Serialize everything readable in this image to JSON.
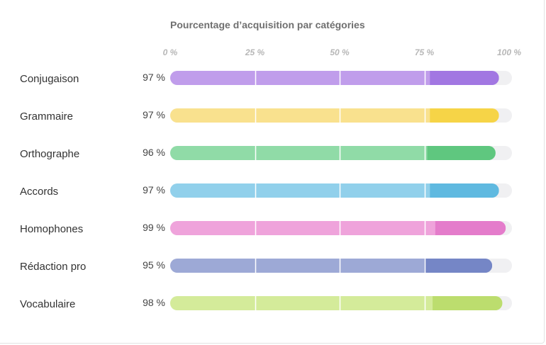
{
  "chart_data": {
    "type": "bar",
    "orientation": "horizontal",
    "title": "Pourcentage d’acquisition par catégories",
    "xlabel": "",
    "ylabel": "",
    "xlim": [
      0,
      100
    ],
    "ticks": [
      "0 %",
      "25 %",
      "50 %",
      "75 %",
      "100 %"
    ],
    "tick_values": [
      0,
      25,
      50,
      75,
      100
    ],
    "grid": true,
    "categories": [
      "Conjugaison",
      "Grammaire",
      "Orthographe",
      "Accords",
      "Homophones",
      "Rédaction pro",
      "Vocabulaire"
    ],
    "values": [
      97,
      97,
      96,
      97,
      99,
      95,
      98
    ],
    "value_labels": [
      "97 %",
      "97 %",
      "96 %",
      "97 %",
      "99 %",
      "95 %",
      "98 %"
    ],
    "colors": [
      {
        "light": "#c09deb",
        "dark": "#a277e2"
      },
      {
        "light": "#f9e18e",
        "dark": "#f6d447"
      },
      {
        "light": "#90dba7",
        "dark": "#5fc77f"
      },
      {
        "light": "#91d0eb",
        "dark": "#5fb9e0"
      },
      {
        "light": "#efa3db",
        "dark": "#e47ccb"
      },
      {
        "light": "#9da9d6",
        "dark": "#7586c6"
      },
      {
        "light": "#d4eb9a",
        "dark": "#bcdd6e"
      }
    ],
    "track_color": "#f0f0f2"
  }
}
